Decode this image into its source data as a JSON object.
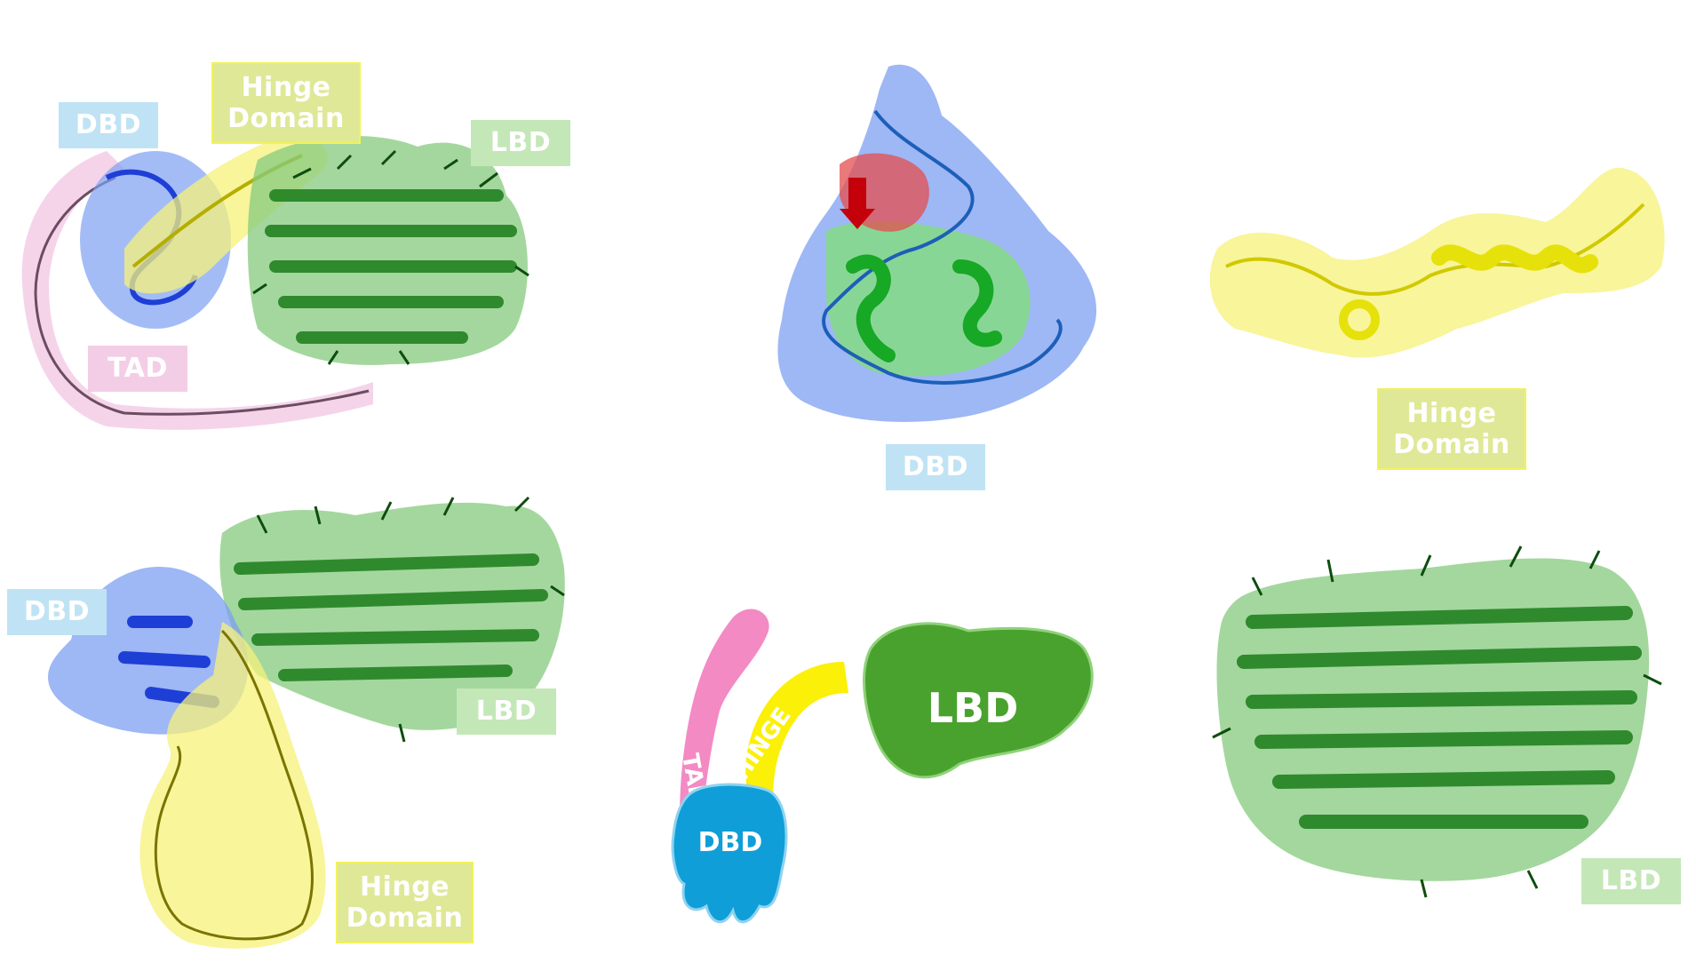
{
  "colors": {
    "dbd": "#1e3fd6",
    "dbd_surface": "#7e9ff2",
    "hinge": "#e6e10a",
    "hinge_surface": "#f5f27a",
    "lbd": "#1b7d1b",
    "lbd_surface": "#86c97e",
    "tad": "#e9a7cf",
    "tad_surface": "#f3cde6",
    "red_surface": "#e34d4d",
    "cartoon_tad": "#f38ac4",
    "cartoon_hinge": "#fbf008",
    "cartoon_lbd": "#4aa22e",
    "cartoon_dbd": "#0f9ed8"
  },
  "panels": {
    "full_structure_top": {
      "labels": {
        "dbd": "DBD",
        "hinge": [
          "Hinge",
          "Domain"
        ],
        "lbd": "LBD",
        "tad": "TAD"
      }
    },
    "dbd_detail": {
      "label": "DBD"
    },
    "hinge_detail": {
      "label": [
        "Hinge",
        "Domain"
      ]
    },
    "full_structure_bottom": {
      "labels": {
        "dbd": "DBD",
        "lbd": "LBD",
        "hinge": [
          "Hinge",
          "Domain"
        ]
      }
    },
    "schematic": {
      "tad": "TAD",
      "hinge": "HINGE",
      "lbd": "LBD",
      "dbd": "DBD"
    },
    "lbd_detail": {
      "label": "LBD"
    }
  }
}
